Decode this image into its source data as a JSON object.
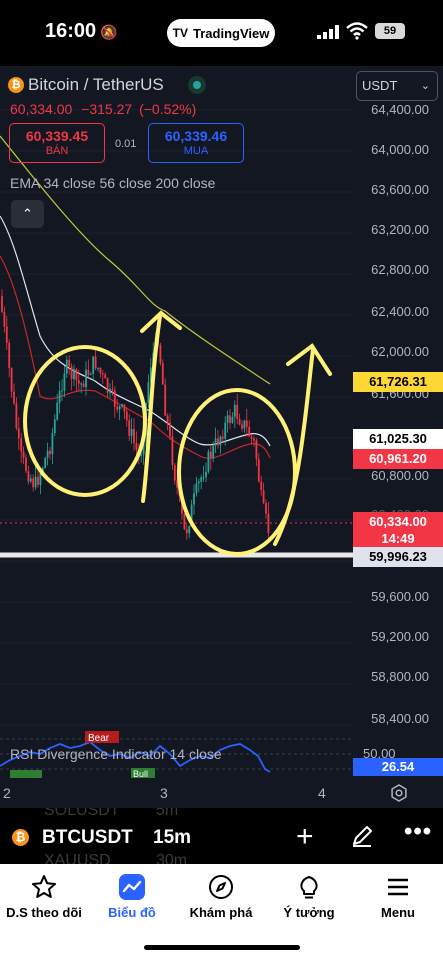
{
  "status_bar": {
    "time": "16:00",
    "app_pill": "TradingView",
    "battery": "59"
  },
  "chart": {
    "symbol_title": "Bitcoin / TetherUS",
    "last_price": "60,334.00",
    "change": "−315.27",
    "change_pct": "(−0.52%)",
    "sell_price": "60,339.45",
    "sell_label": "BÁN",
    "spread": "0.01",
    "buy_price": "60,339.46",
    "buy_label": "MUA",
    "ema_legend": "EMA 34 close 56 close 200 close",
    "currency": "USDT",
    "price_axis": [
      "64,400.00",
      "64,000.00",
      "63,600.00",
      "63,200.00",
      "62,800.00",
      "62,400.00",
      "62,000.00",
      "61,600.00",
      "60,800.00",
      "60,400.00",
      "59,600.00",
      "59,200.00",
      "58,800.00",
      "58,400.00"
    ],
    "price_tags": {
      "ema200": "61,726.31",
      "ema56": "61,025.30",
      "ema34": "60,961.20",
      "last": "60,334.00",
      "countdown": "14:49",
      "support": "59,996.23"
    },
    "rsi": {
      "legend": "RSI Divergence Indicator 14 close",
      "level": "50.00",
      "value": "26.54",
      "bear_label": "Bear",
      "bull_label": "Bull"
    },
    "time_axis": [
      "2",
      "3",
      "4"
    ],
    "colors": {
      "up": "#26a69a",
      "down": "#f23645",
      "ema34": "#c62828",
      "ema56": "#e0e3eb",
      "ema200": "#c0ca33",
      "annotation": "#fff176",
      "rsi": "#2962ff"
    }
  },
  "symbol_bar": {
    "symbol": "BTCUSDT",
    "interval": "15m",
    "ghost_1": "SOLUSDT",
    "ghost_1_tf": "5m",
    "ghost_2": "XAUUSD",
    "ghost_2_tf": "30m"
  },
  "tabs": [
    {
      "label": "D.S theo dõi",
      "icon": "star-icon"
    },
    {
      "label": "Biểu đồ",
      "icon": "chart-icon",
      "active": true
    },
    {
      "label": "Khám phá",
      "icon": "compass-icon"
    },
    {
      "label": "Ý tưởng",
      "icon": "lightbulb-icon"
    },
    {
      "label": "Menu",
      "icon": "menu-icon"
    }
  ]
}
